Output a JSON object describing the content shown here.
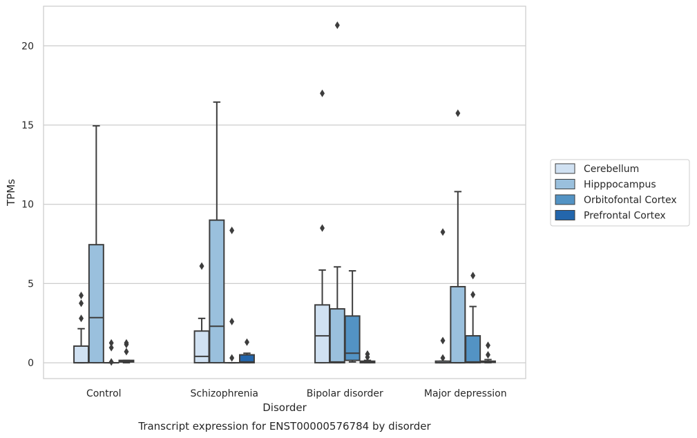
{
  "chart_data": {
    "type": "box",
    "caption": "Transcript expression for ENST00000576784 by disorder",
    "xlabel": "Disorder",
    "ylabel": "TPMs",
    "ylim": [
      -1,
      22.5
    ],
    "yticks": [
      0,
      5,
      10,
      15,
      20
    ],
    "grid": "horizontal",
    "legend_position": "right",
    "categories": [
      "Control",
      "Schizophrenia",
      "Bipolar disorder",
      "Major depression"
    ],
    "series": [
      {
        "name": "Cerebellum",
        "color": "#d0e1f2",
        "boxes": [
          {
            "whislo": 0,
            "q1": 0,
            "med": 0,
            "q3": 1.05,
            "whishi": 2.15,
            "fliers": [
              2.8,
              3.75,
              4.25
            ]
          },
          {
            "whislo": 0,
            "q1": 0,
            "med": 0.4,
            "q3": 2.0,
            "whishi": 2.8,
            "fliers": [
              6.1
            ]
          },
          {
            "whislo": 0,
            "q1": 0,
            "med": 1.7,
            "q3": 3.65,
            "whishi": 5.85,
            "fliers": [
              8.5,
              17.0
            ]
          },
          {
            "whislo": 0,
            "q1": 0,
            "med": 0,
            "q3": 0.1,
            "whishi": 0.1,
            "fliers": [
              0.3,
              1.4,
              8.25
            ]
          }
        ]
      },
      {
        "name": "Hipppocampus",
        "color": "#9ac0dd",
        "boxes": [
          {
            "whislo": 0,
            "q1": 0,
            "med": 2.85,
            "q3": 7.45,
            "whishi": 14.95,
            "fliers": []
          },
          {
            "whislo": 0,
            "q1": 0,
            "med": 2.3,
            "q3": 9.0,
            "whishi": 16.45,
            "fliers": []
          },
          {
            "whislo": 0,
            "q1": 0,
            "med": 0.05,
            "q3": 3.4,
            "whishi": 6.05,
            "fliers": [
              21.3
            ]
          },
          {
            "whislo": 0,
            "q1": 0,
            "med": 0,
            "q3": 4.8,
            "whishi": 10.8,
            "fliers": [
              15.75
            ]
          }
        ]
      },
      {
        "name": "Orbitofontal Cortex",
        "color": "#5393c4",
        "boxes": [
          {
            "whislo": 0,
            "q1": 0,
            "med": 0,
            "q3": 0,
            "whishi": 0,
            "fliers": [
              0.05,
              0.95,
              1.25
            ]
          },
          {
            "whislo": 0,
            "q1": 0,
            "med": 0,
            "q3": 0,
            "whishi": 0,
            "fliers": [
              0.3,
              2.6,
              8.35
            ]
          },
          {
            "whislo": 0.05,
            "q1": 0.15,
            "med": 0.6,
            "q3": 2.95,
            "whishi": 5.8,
            "fliers": []
          },
          {
            "whislo": 0,
            "q1": 0,
            "med": 0.05,
            "q3": 1.7,
            "whishi": 3.55,
            "fliers": [
              4.3,
              5.5
            ]
          }
        ]
      },
      {
        "name": "Prefrontal Cortex",
        "color": "#2366ac",
        "boxes": [
          {
            "whislo": 0,
            "q1": 0.05,
            "med": 0.1,
            "q3": 0.15,
            "whishi": 0.15,
            "fliers": [
              0.7,
              1.15,
              1.25
            ]
          },
          {
            "whislo": 0,
            "q1": 0,
            "med": 0.05,
            "q3": 0.5,
            "whishi": 0.6,
            "fliers": [
              1.3
            ]
          },
          {
            "whislo": 0,
            "q1": 0,
            "med": 0.05,
            "q3": 0.1,
            "whishi": 0.15,
            "fliers": [
              0.35,
              0.55
            ]
          },
          {
            "whislo": 0,
            "q1": 0.02,
            "med": 0.05,
            "q3": 0.1,
            "whishi": 0.2,
            "fliers": [
              0.5,
              1.1
            ]
          }
        ]
      }
    ]
  }
}
